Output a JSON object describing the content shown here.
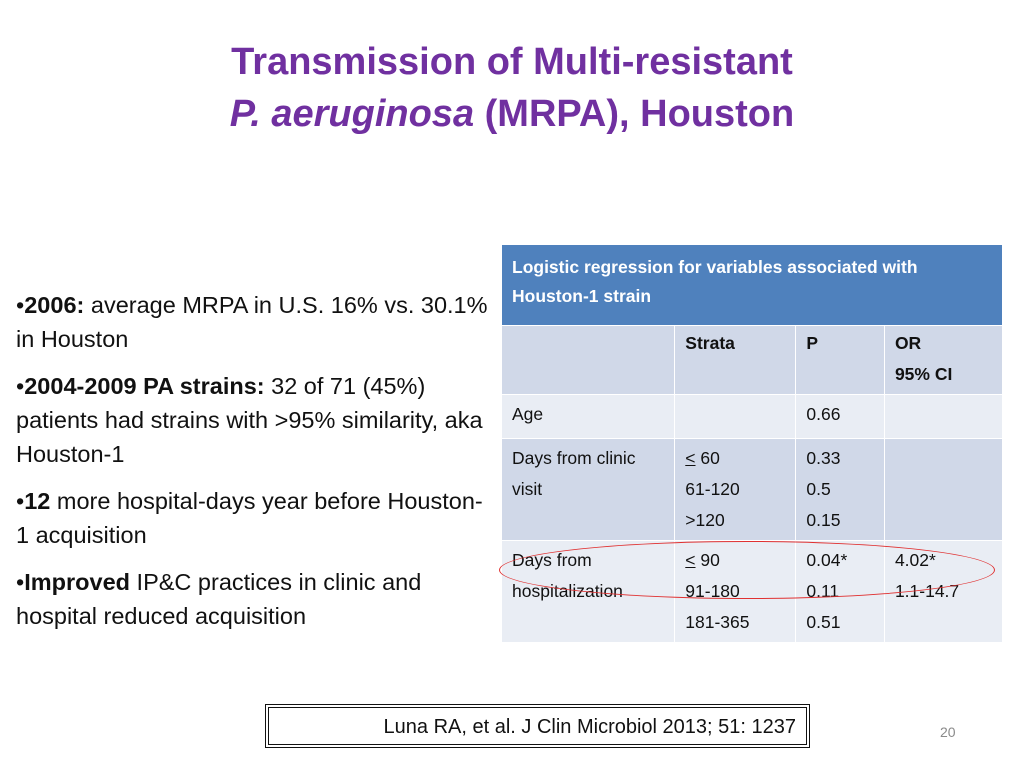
{
  "title": {
    "line1": "Transmission of Multi-resistant",
    "line2_italic": "P. aeruginosa",
    "line2_rest": " (MRPA), Houston"
  },
  "bullets": [
    {
      "marker": "•",
      "bold": "2006:",
      "text": " average MRPA in U.S. 16% vs. 30.1% in Houston"
    },
    {
      "marker": "•",
      "bold": "2004-2009 PA strains:",
      "text": " 32 of 71 (45%) patients had strains with >95% similarity, aka Houston-1"
    },
    {
      "marker": "•",
      "bold": "12",
      "text": " more hospital-days year before Houston-1 acquisition"
    },
    {
      "marker": "•",
      "bold": "Improved",
      "text": " IP&C practices in clinic and hospital reduced acquisition"
    }
  ],
  "table": {
    "caption": "Logistic  regression  for variables associated with Houston-1 strain",
    "headers": {
      "col1": "",
      "col2": "Strata",
      "col3": "P",
      "col4_line1": "OR",
      "col4_line2": "95% CI"
    },
    "rows": [
      {
        "label": "Age",
        "strata": [],
        "p": [
          "0.66"
        ],
        "or": []
      },
      {
        "label": "Days from clinic visit",
        "strata": [
          "< 60",
          "61-120",
          ">120"
        ],
        "p": [
          "0.33",
          "0.5",
          "0.15"
        ],
        "or": []
      },
      {
        "label": "Days from hospitalization",
        "strata": [
          "< 90",
          "91-180",
          "181-365"
        ],
        "p": [
          "0.04*",
          "0.11",
          "0.51"
        ],
        "or": [
          "4.02*",
          "1.1-14.7"
        ]
      }
    ]
  },
  "citation": "Luna RA, et al. J Clin Microbiol 2013; 51: 1237",
  "slide_number": "20",
  "colors": {
    "title": "#7030A0",
    "table_header": "#4F81BD",
    "row_dark": "#D0D8E8",
    "row_light": "#E9EDF4",
    "highlight_ellipse": "#E03131"
  }
}
